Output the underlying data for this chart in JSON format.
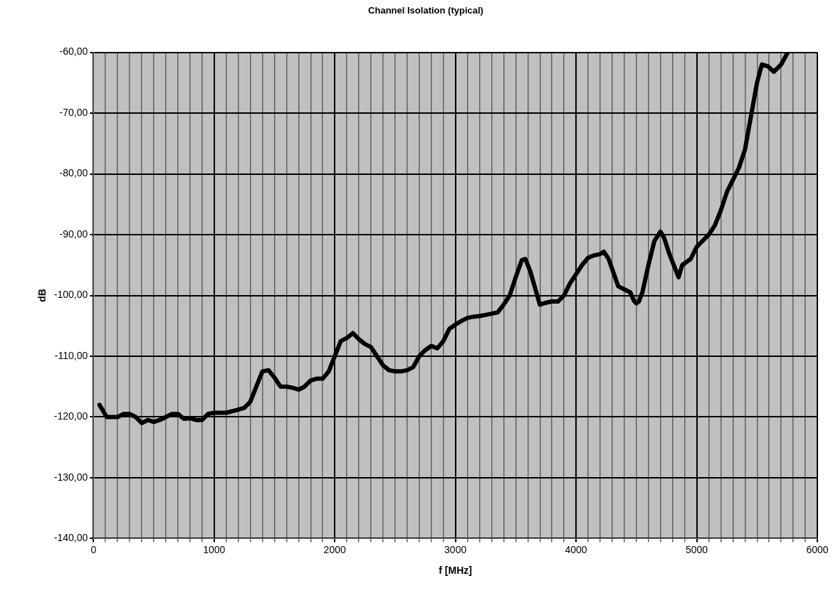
{
  "chart_data": {
    "type": "line",
    "title": "Channel Isolation (typical)",
    "xlabel": "f [MHz]",
    "ylabel": "dB",
    "xlim": [
      0,
      6000
    ],
    "xticks": [
      0,
      {
        "value": 100,
        "label": null
      },
      {
        "value": 200,
        "label": null
      },
      {
        "value": 300,
        "label": null
      },
      {
        "value": 400,
        "label": null
      },
      {
        "value": 500,
        "label": null
      },
      {
        "value": 600,
        "label": null
      },
      {
        "value": 700,
        "label": null
      },
      {
        "value": 800,
        "label": null
      },
      {
        "value": 900,
        "label": null
      },
      1000,
      {
        "value": 1100,
        "label": null
      },
      {
        "value": 1200,
        "label": null
      },
      {
        "value": 1300,
        "label": null
      },
      {
        "value": 1400,
        "label": null
      },
      {
        "value": 1500,
        "label": null
      },
      {
        "value": 1600,
        "label": null
      },
      {
        "value": 1700,
        "label": null
      },
      {
        "value": 1800,
        "label": null
      },
      {
        "value": 1900,
        "label": null
      },
      2000,
      {
        "value": 2100,
        "label": null
      },
      {
        "value": 2200,
        "label": null
      },
      {
        "value": 2300,
        "label": null
      },
      {
        "value": 2400,
        "label": null
      },
      {
        "value": 2500,
        "label": null
      },
      {
        "value": 2600,
        "label": null
      },
      {
        "value": 2700,
        "label": null
      },
      {
        "value": 2800,
        "label": null
      },
      {
        "value": 2900,
        "label": null
      },
      3000,
      {
        "value": 3100,
        "label": null
      },
      {
        "value": 3200,
        "label": null
      },
      {
        "value": 3300,
        "label": null
      },
      {
        "value": 3400,
        "label": null
      },
      {
        "value": 3500,
        "label": null
      },
      {
        "value": 3600,
        "label": null
      },
      {
        "value": 3700,
        "label": null
      },
      {
        "value": 3800,
        "label": null
      },
      {
        "value": 3900,
        "label": null
      },
      4000,
      {
        "value": 4100,
        "label": null
      },
      {
        "value": 4200,
        "label": null
      },
      {
        "value": 4300,
        "label": null
      },
      {
        "value": 4400,
        "label": null
      },
      {
        "value": 4500,
        "label": null
      },
      {
        "value": 4600,
        "label": null
      },
      {
        "value": 4700,
        "label": null
      },
      {
        "value": 4800,
        "label": null
      },
      {
        "value": 4900,
        "label": null
      },
      5000,
      {
        "value": 5100,
        "label": null
      },
      {
        "value": 5200,
        "label": null
      },
      {
        "value": 5300,
        "label": null
      },
      {
        "value": 5400,
        "label": null
      },
      {
        "value": 5500,
        "label": null
      },
      {
        "value": 5600,
        "label": null
      },
      {
        "value": 5700,
        "label": null
      },
      {
        "value": 5800,
        "label": null
      },
      {
        "value": 5900,
        "label": null
      },
      6000
    ],
    "ylim": [
      -140,
      -60
    ],
    "yticks": [
      {
        "value": -140,
        "label": "-140,00"
      },
      {
        "value": -130,
        "label": "-130,00"
      },
      {
        "value": -120,
        "label": "-120,00"
      },
      {
        "value": -110,
        "label": "-110,00"
      },
      {
        "value": -100,
        "label": "-100,00"
      },
      {
        "value": -90,
        "label": "-90,00"
      },
      {
        "value": -80,
        "label": "-80,00"
      },
      {
        "value": -70,
        "label": "-70,00"
      },
      {
        "value": -60,
        "label": "-60,00"
      }
    ],
    "grid": true,
    "legend": false,
    "marker": "none",
    "line_style": "solid",
    "series": [
      {
        "color": "#000000",
        "x": [
          50,
          80,
          110,
          200,
          250,
          300,
          350,
          400,
          450,
          500,
          550,
          600,
          650,
          700,
          750,
          800,
          850,
          900,
          950,
          1000,
          1100,
          1200,
          1250,
          1300,
          1350,
          1400,
          1450,
          1500,
          1550,
          1600,
          1650,
          1700,
          1750,
          1800,
          1850,
          1900,
          1950,
          2000,
          2050,
          2100,
          2150,
          2200,
          2250,
          2300,
          2350,
          2400,
          2450,
          2500,
          2550,
          2600,
          2650,
          2700,
          2750,
          2800,
          2850,
          2900,
          2950,
          3000,
          3050,
          3100,
          3150,
          3200,
          3250,
          3300,
          3350,
          3400,
          3450,
          3500,
          3550,
          3580,
          3620,
          3700,
          3750,
          3800,
          3850,
          3900,
          3950,
          4000,
          4050,
          4100,
          4150,
          4200,
          4230,
          4270,
          4350,
          4400,
          4450,
          4480,
          4500,
          4520,
          4550,
          4600,
          4650,
          4700,
          4730,
          4770,
          4820,
          4850,
          4880,
          4950,
          5000,
          5050,
          5100,
          5150,
          5200,
          5250,
          5300,
          5350,
          5400,
          5450,
          5500,
          5540,
          5590,
          5640,
          5700,
          5755
        ],
        "values": [
          -118,
          -119,
          -120,
          -120,
          -119.5,
          -119.5,
          -120,
          -121,
          -120.5,
          -120.8,
          -120.5,
          -120,
          -119.5,
          -119.5,
          -120.3,
          -120.2,
          -120.5,
          -120.5,
          -119.5,
          -119.3,
          -119.3,
          -118.8,
          -118.5,
          -117.5,
          -115,
          -112.5,
          -112.3,
          -113.5,
          -115,
          -115,
          -115.2,
          -115.5,
          -115,
          -114,
          -113.7,
          -113.7,
          -112.5,
          -110,
          -107.5,
          -107,
          -106.2,
          -107.2,
          -108,
          -108.5,
          -110,
          -111.5,
          -112.3,
          -112.5,
          -112.5,
          -112.3,
          -111.8,
          -110,
          -109,
          -108.3,
          -108.7,
          -107.5,
          -105.5,
          -104.8,
          -104.2,
          -103.7,
          -103.5,
          -103.4,
          -103.2,
          -103,
          -102.8,
          -101.5,
          -100,
          -97,
          -94.2,
          -94,
          -96,
          -101.5,
          -101.2,
          -101,
          -101,
          -100,
          -98,
          -96.5,
          -95,
          -93.8,
          -93.4,
          -93.2,
          -92.8,
          -94,
          -98.5,
          -99,
          -99.5,
          -100.9,
          -101.3,
          -101,
          -99.5,
          -95,
          -91,
          -89.5,
          -90.5,
          -93,
          -95.5,
          -97,
          -95,
          -94,
          -92,
          -91,
          -90,
          -88.5,
          -86,
          -83,
          -81,
          -79,
          -76,
          -70.5,
          -65,
          -62,
          -62.3,
          -63.2,
          -62,
          -60
        ]
      }
    ]
  }
}
